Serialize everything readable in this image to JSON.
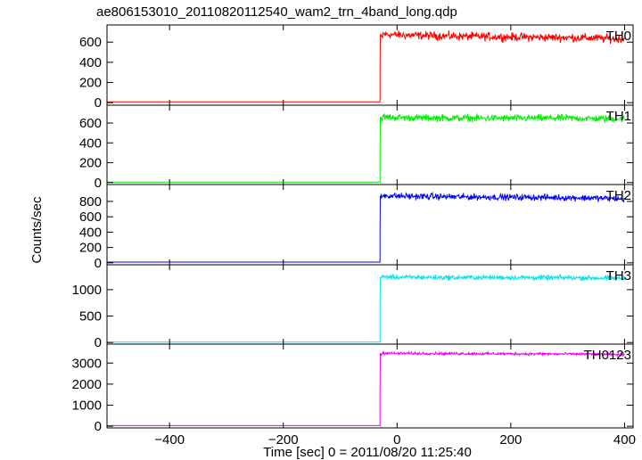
{
  "title": "ae806153010_20110820112540_wam2_trn_4band_long.qdp",
  "ylabel": "Counts/sec",
  "xlabel": "Time [sec] 0 = 2011/08/20 11:25:40",
  "chart_data": {
    "type": "line",
    "title": "ae806153010_20110820112540_wam2_trn_4band_long.qdp",
    "xlabel": "Time [sec] 0 = 2011/08/20 11:25:40",
    "ylabel": "Counts/sec",
    "xlim": [
      -510,
      415
    ],
    "x_ticks": [
      -400,
      -200,
      0,
      200,
      400
    ],
    "onset_time": -30,
    "grid": false,
    "panels": [
      {
        "name": "TH0",
        "color": "#ff0000",
        "ylim": [
          -25,
          770
        ],
        "y_ticks": [
          0,
          200,
          400,
          600
        ],
        "baseline": 8,
        "level": 650,
        "noise": 35,
        "x": [
          -510,
          -31,
          -30,
          -25,
          0,
          100,
          200,
          300,
          350,
          400
        ],
        "y": [
          8,
          8,
          300,
          680,
          670,
          660,
          650,
          645,
          640,
          630
        ]
      },
      {
        "name": "TH1",
        "color": "#00ee00",
        "ylim": [
          -20,
          780
        ],
        "y_ticks": [
          0,
          200,
          400,
          600
        ],
        "baseline": 5,
        "level": 650,
        "noise": 30,
        "x": [
          -510,
          -31,
          -30,
          -25,
          0,
          100,
          200,
          300,
          350,
          400
        ],
        "y": [
          5,
          5,
          300,
          660,
          655,
          650,
          648,
          650,
          645,
          640
        ]
      },
      {
        "name": "TH2",
        "color": "#0000ff",
        "ylim": [
          -25,
          1020
        ],
        "y_ticks": [
          0,
          200,
          400,
          600,
          800
        ],
        "baseline": 10,
        "level": 860,
        "noise": 35,
        "x": [
          -510,
          -31,
          -30,
          -25,
          0,
          100,
          200,
          300,
          350,
          400
        ],
        "y": [
          10,
          10,
          420,
          880,
          870,
          860,
          855,
          850,
          845,
          830
        ]
      },
      {
        "name": "TH3",
        "color": "#00e5ee",
        "ylim": [
          -30,
          1470
        ],
        "y_ticks": [
          0,
          500,
          1000
        ],
        "baseline": 8,
        "level": 1230,
        "noise": 40,
        "x": [
          -510,
          -31,
          -30,
          -25,
          0,
          100,
          200,
          300,
          350,
          400
        ],
        "y": [
          8,
          8,
          600,
          1240,
          1235,
          1230,
          1230,
          1225,
          1220,
          1210
        ]
      },
      {
        "name": "TH0123",
        "color": "#ee00ee",
        "ylim": [
          -80,
          3900
        ],
        "y_ticks": [
          0,
          1000,
          2000,
          3000
        ],
        "baseline": 30,
        "level": 3440,
        "noise": 55,
        "x": [
          -510,
          -31,
          -30,
          -25,
          0,
          100,
          200,
          300,
          350,
          400
        ],
        "y": [
          30,
          30,
          1700,
          3480,
          3460,
          3450,
          3440,
          3430,
          3420,
          3400
        ]
      }
    ]
  }
}
